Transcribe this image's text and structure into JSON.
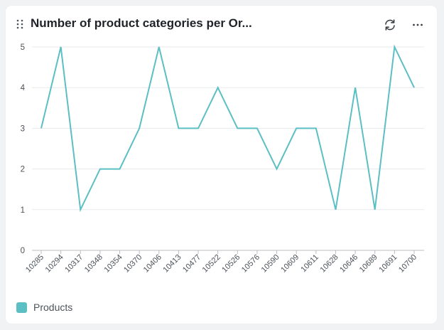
{
  "header": {
    "title": "Number of product categories per Or...",
    "refresh_icon": "refresh-icon",
    "more_icon": "more-horizontal-icon",
    "drag_icon": "drag-handle-icon"
  },
  "colors": {
    "series": "#5bbfc4",
    "grid": "#e6e8eb",
    "axis": "#b8bcc2",
    "tick_text": "#4c5259"
  },
  "chart_data": {
    "type": "line",
    "title": "Number of product categories per Or...",
    "xlabel": "",
    "ylabel": "",
    "ylim": [
      0,
      5
    ],
    "yticks": [
      0,
      1,
      2,
      3,
      4,
      5
    ],
    "grid": true,
    "legend": "bottom-left",
    "categories": [
      "10285",
      "10294",
      "10317",
      "10348",
      "10354",
      "10370",
      "10406",
      "10413",
      "10477",
      "10522",
      "10526",
      "10576",
      "10590",
      "10609",
      "10611",
      "10628",
      "10646",
      "10689",
      "10691",
      "10700"
    ],
    "series": [
      {
        "name": "Products",
        "values": [
          3,
          5,
          1,
          2,
          2,
          3,
          5,
          3,
          3,
          4,
          3,
          3,
          2,
          3,
          3,
          1,
          4,
          1,
          5,
          4
        ]
      }
    ]
  },
  "legend": {
    "items": [
      {
        "label": "Products"
      }
    ]
  }
}
